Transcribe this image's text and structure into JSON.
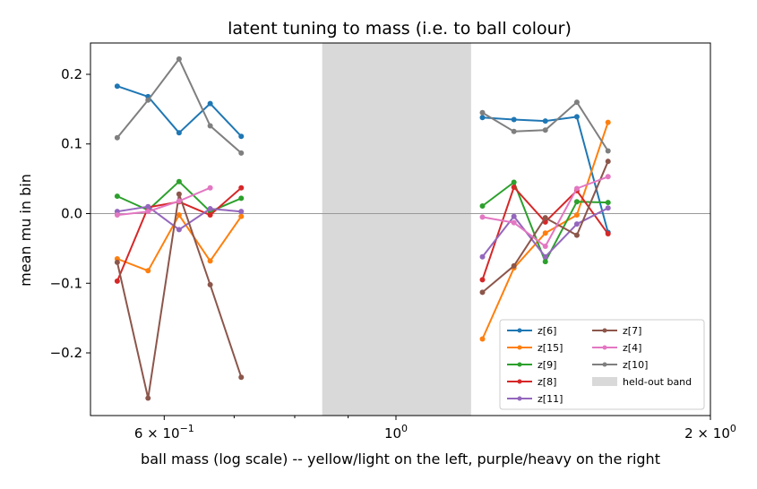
{
  "chart_data": {
    "type": "line",
    "title": "latent tuning to mass (i.e. to ball colour)",
    "xlabel": "ball mass (log scale) -- yellow/light on the left, purple/heavy on the right",
    "ylabel": "mean mu in bin",
    "xscale": "log",
    "xlim": [
      0.51,
      2.0
    ],
    "ylim": [
      -0.29,
      0.245
    ],
    "x_major_ticks": [
      {
        "value": 0.6,
        "mantissa": "6",
        "sep": " × 10",
        "exp": "−1"
      },
      {
        "value": 1.0,
        "mantissa": "",
        "sep": "10",
        "exp": "0"
      },
      {
        "value": 2.0,
        "mantissa": "2",
        "sep": " × 10",
        "exp": "0"
      }
    ],
    "x_minor_ticks": [
      0.5,
      0.7,
      0.8,
      0.9,
      3.0
    ],
    "y_ticks": [
      {
        "value": 0.2,
        "label": "0.2"
      },
      {
        "value": 0.1,
        "label": "0.1"
      },
      {
        "value": 0.0,
        "label": "0.0"
      },
      {
        "value": -0.1,
        "label": "−0.1"
      },
      {
        "value": -0.2,
        "label": "−0.2"
      }
    ],
    "zero_line": true,
    "held_out_band": {
      "label": "held-out band",
      "xmin": 0.85,
      "xmax": 1.18,
      "color": "#d9d9d9"
    },
    "x": [
      0.541,
      0.579,
      0.62,
      0.664,
      0.711,
      0.762,
      1.21,
      1.297,
      1.39,
      1.49,
      1.596,
      1.711
    ],
    "series": [
      {
        "name": "z[6]",
        "color": "#1f77b4",
        "values": [
          0.183,
          0.168,
          0.116,
          0.158,
          0.111,
          null,
          0.138,
          0.135,
          0.133,
          0.139,
          -0.027,
          null
        ]
      },
      {
        "name": "z[15]",
        "color": "#ff7f0e",
        "values": [
          -0.065,
          -0.082,
          -0.002,
          -0.068,
          -0.004,
          null,
          -0.18,
          -0.078,
          -0.028,
          -0.002,
          0.131,
          null
        ]
      },
      {
        "name": "z[9]",
        "color": "#2ca02c",
        "values": [
          0.025,
          0.005,
          0.046,
          0.003,
          0.022,
          null,
          0.011,
          0.045,
          -0.069,
          0.017,
          0.016,
          null
        ]
      },
      {
        "name": "z[8]",
        "color": "#d62728",
        "values": [
          -0.097,
          0.009,
          0.017,
          -0.002,
          0.037,
          null,
          -0.095,
          0.038,
          -0.012,
          0.033,
          -0.029,
          null
        ]
      },
      {
        "name": "z[11]",
        "color": "#9467bd",
        "values": [
          0.003,
          0.01,
          -0.023,
          0.007,
          0.003,
          null,
          -0.062,
          -0.004,
          -0.062,
          -0.015,
          0.008,
          null
        ]
      },
      {
        "name": "z[7]",
        "color": "#8c564b",
        "values": [
          -0.07,
          -0.265,
          0.028,
          -0.102,
          -0.235,
          null,
          -0.113,
          -0.075,
          -0.006,
          -0.031,
          0.075,
          null
        ]
      },
      {
        "name": "z[4]",
        "color": "#e377c2",
        "values": [
          -0.002,
          0.003,
          0.018,
          0.037,
          null,
          null,
          -0.005,
          -0.013,
          -0.047,
          0.036,
          0.053,
          null
        ]
      },
      {
        "name": "z[10]",
        "color": "#7f7f7f",
        "values": [
          0.109,
          0.163,
          0.222,
          0.126,
          0.087,
          null,
          0.145,
          0.118,
          0.12,
          0.16,
          0.09,
          null
        ]
      }
    ],
    "legend": {
      "position": "lower-right",
      "columns": 2
    }
  }
}
